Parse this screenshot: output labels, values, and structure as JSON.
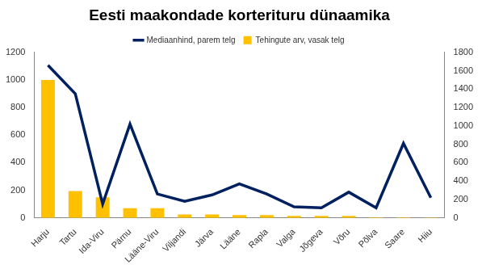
{
  "chart_data": {
    "type": "bar",
    "title": "Eesti maakondade korterituru dünaamika",
    "categories": [
      "Harju",
      "Tartu",
      "Ida-Viru",
      "Pärnu",
      "Lääne-Viru",
      "Viljandi",
      "Järva",
      "Lääne",
      "Rapla",
      "Valga",
      "Jõgeva",
      "Võru",
      "Põlva",
      "Saare",
      "Hiiu"
    ],
    "series": [
      {
        "name": "Tehingute arv, vasak telg",
        "type": "bar",
        "color": "#FFC000",
        "axis": "y",
        "values": [
          1000,
          195,
          150,
          70,
          70,
          25,
          25,
          20,
          20,
          15,
          15,
          15,
          5,
          5,
          3
        ]
      },
      {
        "name": "Mediaanhind, parem telg",
        "type": "line",
        "color": "#002060",
        "axis": "y2",
        "marker": "none",
        "values": [
          1660,
          1350,
          150,
          1020,
          260,
          180,
          250,
          370,
          260,
          120,
          110,
          280,
          110,
          810,
          220
        ]
      }
    ],
    "ylim": [
      0,
      1200
    ],
    "yticks": [
      0,
      200,
      400,
      600,
      800,
      1000,
      1200
    ],
    "y2lim": [
      0,
      1800
    ],
    "y2ticks": [
      0,
      200,
      400,
      600,
      800,
      1000,
      1200,
      1400,
      1600,
      1800
    ],
    "grid": false,
    "legend": "top"
  }
}
